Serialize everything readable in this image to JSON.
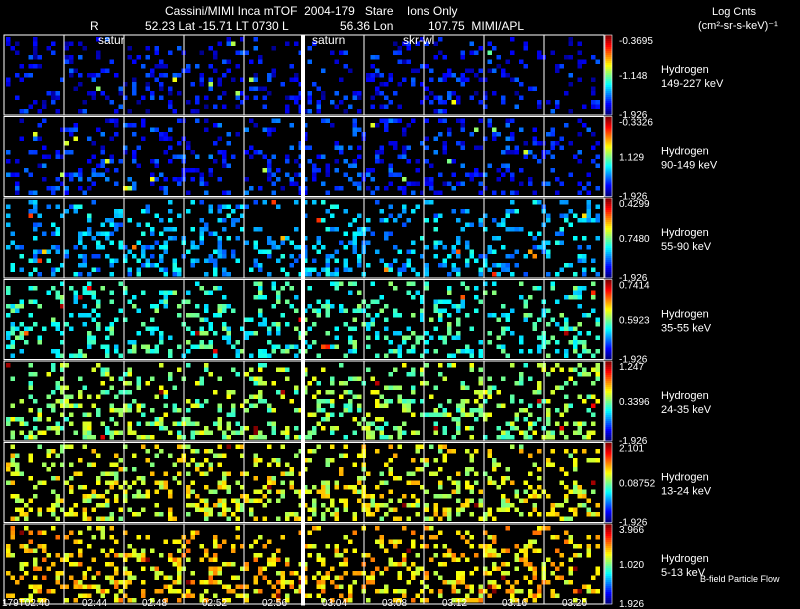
{
  "header": {
    "title": "Cassini/MIMI Inca mTOF  2004-179   Stare    Ions Only",
    "line2_r": "R",
    "line2_mid": "52.23 Lat -15.71 LT 0730 L",
    "line2_lon": "56.36 Lon",
    "line2_right": "107.75  MIMI/APL",
    "legend_title": "Log Cnts",
    "legend_units": "(cm²-sr-s-keV)⁻¹",
    "markers": [
      "satur",
      "saturn",
      "skr-wl"
    ],
    "footer_note": "B-field Particle Flow"
  },
  "chart_data": {
    "type": "heatmap",
    "species": "Hydrogen",
    "time_labels": [
      "179T02:40",
      "02:44",
      "02:48",
      "02:52",
      "02:56",
      "03:04",
      "03:08",
      "03:12",
      "03:16",
      "03:20"
    ],
    "gap_after_index": 3,
    "panels": [
      {
        "species": "Hydrogen",
        "energy": "149-227 keV",
        "cmax": "-0.3695",
        "cmid": "-1.148",
        "cmin": "-1.926",
        "level": 0.12
      },
      {
        "species": "Hydrogen",
        "energy": "90-149 keV",
        "cmax": "-0.3326",
        "cmid": "1.129",
        "cmin": "-1.926",
        "level": 0.15
      },
      {
        "species": "Hydrogen",
        "energy": "55-90 keV",
        "cmax": "0.4299",
        "cmid": "0.7480",
        "cmin": "-1.926",
        "level": 0.3
      },
      {
        "species": "Hydrogen",
        "energy": "35-55 keV",
        "cmax": "0.7414",
        "cmid": "0.5923",
        "cmin": "-1.926",
        "level": 0.42
      },
      {
        "species": "Hydrogen",
        "energy": "24-35 keV",
        "cmax": "1.247",
        "cmid": "0.3396",
        "cmin": "-1.926",
        "level": 0.52
      },
      {
        "species": "Hydrogen",
        "energy": "13-24 keV",
        "cmax": "2.101",
        "cmid": "0.08752",
        "cmin": "-1.926",
        "level": 0.6
      },
      {
        "species": "Hydrogen",
        "energy": "5-13 keV",
        "cmax": "3.966",
        "cmid": "1.020",
        "cmin": "1.926",
        "level": 0.66
      }
    ],
    "grid": true,
    "colors": {
      "grid": "#ffffff",
      "background": "#000000"
    }
  }
}
